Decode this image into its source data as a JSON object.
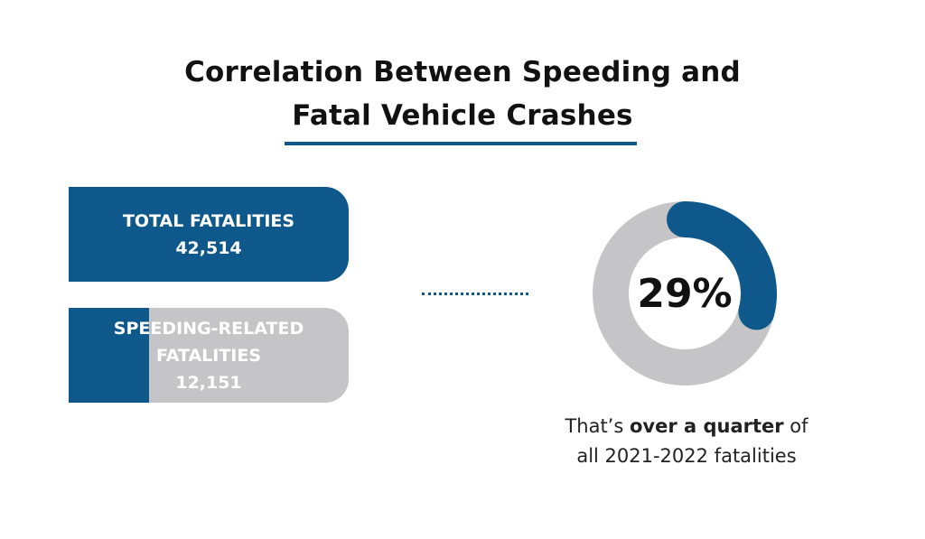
{
  "title": {
    "line1": "Correlation Between Speeding and",
    "line2": "Fatal Vehicle Crashes"
  },
  "colors": {
    "accent": "#0e588c",
    "track": "#c5c5c7",
    "text": "#111111"
  },
  "chart_data": [
    {
      "type": "bar",
      "orientation": "horizontal",
      "categories": [
        "TOTAL FATALITIES",
        "SPEEDING-RELATED FATALITIES"
      ],
      "values": [
        42514,
        12151
      ],
      "value_labels": [
        "42,514",
        "12,151"
      ],
      "label_lines": [
        [
          "TOTAL FATALITIES"
        ],
        [
          "SPEEDING-RELATED",
          "FATALITIES"
        ]
      ],
      "max": 42514
    },
    {
      "type": "pie",
      "style": "donut",
      "value_percent": 29,
      "label": "29%"
    }
  ],
  "caption": {
    "pre": "That’s ",
    "bold": "over a quarter",
    "post": " of",
    "line2": "all 2021-2022 fatalities"
  }
}
